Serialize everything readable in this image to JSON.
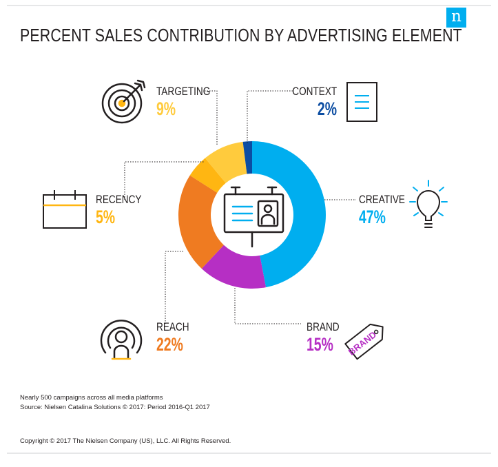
{
  "logo_letter": "n",
  "chart_data": {
    "type": "pie",
    "style": "donut",
    "title": "PERCENT SALES CONTRIBUTION BY ADVERTISING ELEMENT",
    "slices": [
      {
        "name": "CREATIVE",
        "value": 47,
        "label": "47%",
        "color": "#00aeef",
        "icon": "lightbulb-icon"
      },
      {
        "name": "BRAND",
        "value": 15,
        "label": "15%",
        "color": "#b62fc4",
        "icon": "brand-tag-icon"
      },
      {
        "name": "REACH",
        "value": 22,
        "label": "22%",
        "color": "#ef7b21",
        "icon": "broadcast-person-icon"
      },
      {
        "name": "RECENCY",
        "value": 5,
        "label": "5%",
        "color": "#ffb612",
        "icon": "calendar-icon"
      },
      {
        "name": "TARGETING",
        "value": 9,
        "label": "9%",
        "color": "#ffcb3d",
        "icon": "target-icon"
      },
      {
        "name": "CONTEXT",
        "value": 2,
        "label": "2%",
        "color": "#0c4da2",
        "icon": "document-icon"
      }
    ],
    "center_icon": "billboard-icon",
    "tag_text": "BRAND"
  },
  "notes": {
    "line1": "Nearly 500 campaigns across all media platforms",
    "line2": "Source: Nielsen Catalina Solutions © 2017: Period 2016-Q1 2017",
    "copyright": "Copyright © 2017 The Nielsen Company (US), LLC. All Rights Reserved."
  }
}
